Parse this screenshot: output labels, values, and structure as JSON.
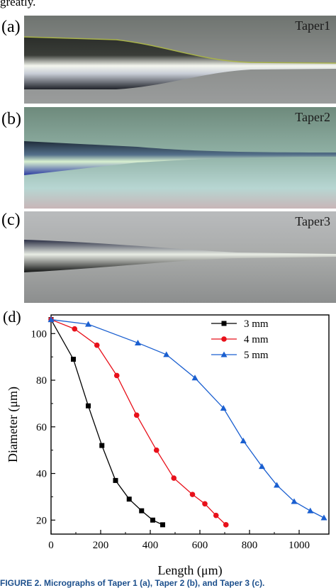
{
  "top_text": "greatly.",
  "panels": [
    {
      "label": "(a)",
      "name": "Taper1"
    },
    {
      "label": "(b)",
      "name": "Taper2"
    },
    {
      "label": "(c)",
      "name": "Taper3"
    }
  ],
  "chart_panel_label": "(d)",
  "caption": "FIGURE 2. Micrographs of Taper 1 (a), Taper 2 (b), and Taper 3 (c).",
  "chart_data": {
    "type": "line",
    "xlabel": "Length (μm)",
    "ylabel": "Diameter (μm)",
    "xlim": [
      0,
      1120
    ],
    "ylim": [
      14,
      108
    ],
    "xticks": [
      0,
      200,
      400,
      600,
      800,
      1000
    ],
    "yticks": [
      20,
      40,
      60,
      80,
      100
    ],
    "legend_position": "top-right",
    "grid": false,
    "series": [
      {
        "name": "3 mm",
        "color": "#000000",
        "marker": "square",
        "x": [
          0,
          90,
          150,
          205,
          260,
          315,
          365,
          410,
          450
        ],
        "y": [
          106,
          89,
          69,
          52,
          37,
          29,
          24,
          20,
          18
        ]
      },
      {
        "name": "4 mm",
        "color": "#e8101a",
        "marker": "circle",
        "x": [
          0,
          95,
          185,
          265,
          345,
          425,
          495,
          570,
          620,
          665,
          705
        ],
        "y": [
          106,
          102,
          95,
          82,
          65,
          50,
          38,
          31,
          27,
          22,
          18
        ]
      },
      {
        "name": "5 mm",
        "color": "#1a5fd0",
        "marker": "triangle",
        "x": [
          0,
          150,
          350,
          465,
          580,
          695,
          775,
          850,
          910,
          980,
          1045,
          1100
        ],
        "y": [
          106,
          104,
          96,
          91,
          81,
          68,
          54,
          43,
          35,
          28,
          24,
          21
        ]
      }
    ]
  }
}
